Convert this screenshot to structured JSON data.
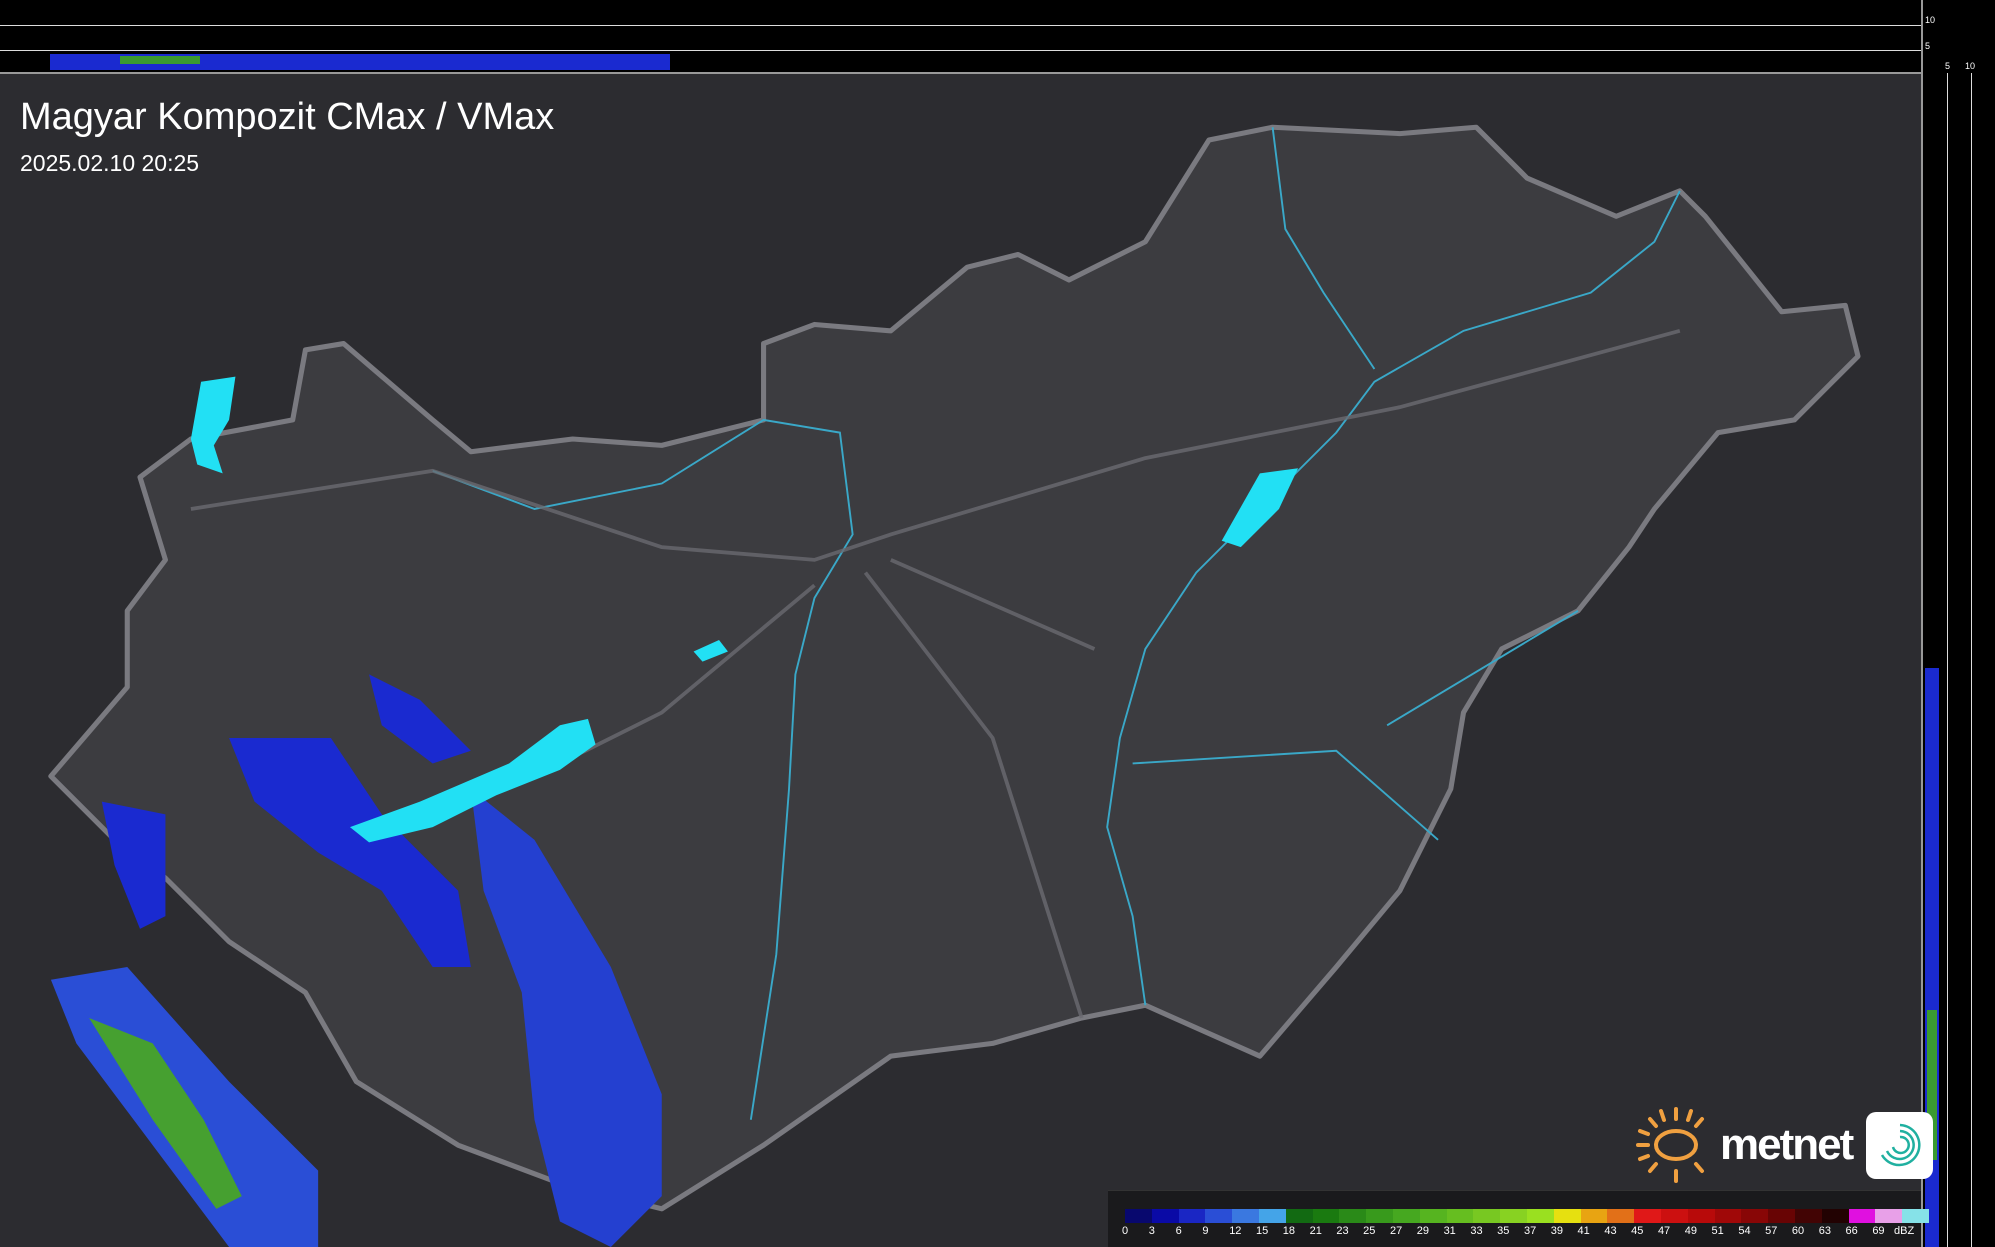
{
  "header": {
    "title": "Magyar Kompozit CMax / VMax",
    "timestamp": "2025.02.10 20:25"
  },
  "profile_ticks": {
    "top": [
      "10",
      "5"
    ],
    "right": [
      "5",
      "10"
    ]
  },
  "legend": {
    "unit": "dBZ",
    "labels": [
      "0",
      "3",
      "6",
      "9",
      "12",
      "15",
      "18",
      "21",
      "23",
      "25",
      "27",
      "29",
      "31",
      "33",
      "35",
      "37",
      "39",
      "41",
      "43",
      "45",
      "47",
      "49",
      "51",
      "54",
      "57",
      "60",
      "63",
      "66",
      "69"
    ],
    "colors": [
      "#08086e",
      "#0a0aa6",
      "#1a26c4",
      "#2a4ed6",
      "#3a78e0",
      "#44a4e8",
      "#126a12",
      "#1a7a10",
      "#2a8a18",
      "#389a1c",
      "#46a820",
      "#56b420",
      "#66be20",
      "#78c822",
      "#88d222",
      "#9ae020",
      "#e6e010",
      "#e8a412",
      "#e27018",
      "#e01818",
      "#cc1010",
      "#b80a0a",
      "#a00808",
      "#880606",
      "#680404",
      "#420404",
      "#220202",
      "#e010e0",
      "#e8a0e8",
      "#86e2e8"
    ]
  },
  "brand": {
    "name": "metnet",
    "sun_color": "#f0a040",
    "icon_color": "#20b0a0"
  },
  "colors": {
    "lake": "#22e0f4",
    "river": "#3aa8c8",
    "border": "#8a8a90",
    "radar_low": "#1a2ad0",
    "radar_mid": "#3a70e0",
    "radar_green": "#40a030"
  }
}
